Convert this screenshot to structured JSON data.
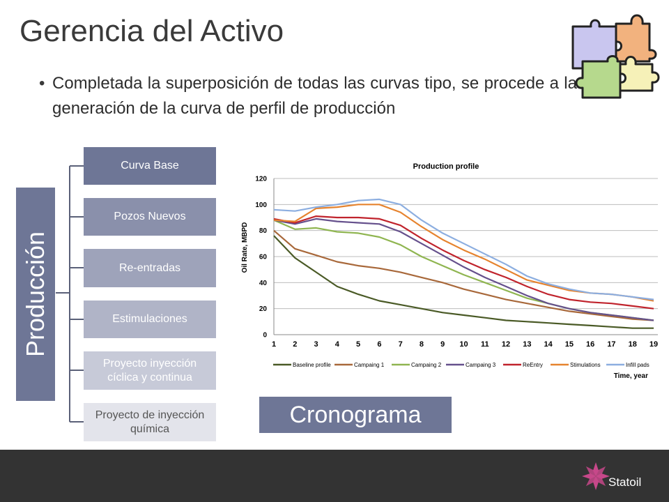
{
  "slide": {
    "title": "Gerencia del Activo",
    "bullet": "Completada la superposición de todas las curvas tipo, se procede a la generación de la curva de perfil de producción"
  },
  "hierarchy": {
    "root_label": "Producción",
    "items": [
      {
        "label": "Curva Base",
        "color": "#6e7696"
      },
      {
        "label": "Pozos Nuevos",
        "color": "#8a90ab"
      },
      {
        "label": "Re-entradas",
        "color": "#9ea3ba"
      },
      {
        "label": "Estimulaciones",
        "color": "#b0b4c7"
      },
      {
        "label": "Proyecto inyección cíclica y continua",
        "color": "#c7cad8"
      },
      {
        "label": "Proyecto de inyección química",
        "color": "#e3e4eb",
        "text_color": "#555555"
      }
    ]
  },
  "chart_data": {
    "type": "line",
    "title": "Production  profile",
    "xlabel": "Time, year",
    "ylabel": "Oil Rate, MBPD",
    "x": [
      1,
      2,
      3,
      4,
      5,
      6,
      7,
      8,
      9,
      10,
      11,
      12,
      13,
      14,
      15,
      16,
      17,
      18,
      19
    ],
    "ylim": [
      0,
      120
    ],
    "yticks": [
      0,
      20,
      40,
      60,
      80,
      100,
      120
    ],
    "grid": true,
    "legend_position": "bottom",
    "series": [
      {
        "name": "Baseline profile",
        "color": "#4a5a26",
        "values": [
          76,
          59,
          48,
          37,
          31,
          26,
          23,
          20,
          17,
          15,
          13,
          11,
          10,
          9,
          8,
          7,
          6,
          5,
          5
        ]
      },
      {
        "name": "Campaing 1",
        "color": "#a8683a",
        "values": [
          80,
          66,
          61,
          56,
          53,
          51,
          48,
          44,
          40,
          35,
          31,
          27,
          24,
          21,
          18,
          16,
          14,
          12,
          11
        ]
      },
      {
        "name": "Campaing 2",
        "color": "#8fb550",
        "values": [
          88,
          81,
          82,
          79,
          78,
          75,
          69,
          60,
          53,
          46,
          40,
          34,
          28,
          24,
          20,
          17,
          15,
          13,
          11
        ]
      },
      {
        "name": "Campaing 3",
        "color": "#65508c",
        "values": [
          88,
          85,
          89,
          87,
          86,
          85,
          79,
          70,
          61,
          52,
          44,
          37,
          30,
          24,
          20,
          17,
          15,
          13,
          11
        ]
      },
      {
        "name": "ReEntry",
        "color": "#c0232c",
        "values": [
          89,
          86,
          91,
          90,
          90,
          89,
          84,
          74,
          65,
          57,
          50,
          44,
          37,
          31,
          27,
          25,
          24,
          22,
          20
        ]
      },
      {
        "name": "Stimulations",
        "color": "#e6832e",
        "values": [
          88,
          87,
          97,
          98,
          100,
          100,
          94,
          83,
          73,
          65,
          58,
          50,
          42,
          38,
          34,
          32,
          31,
          29,
          26
        ]
      },
      {
        "name": "Infill pads",
        "color": "#8caee0",
        "values": [
          96,
          95,
          98,
          100,
          103,
          104,
          100,
          88,
          78,
          70,
          62,
          54,
          45,
          39,
          35,
          32,
          31,
          29,
          27
        ]
      }
    ]
  },
  "crono": {
    "label": "Cronograma"
  },
  "footer": {
    "logo_text": "Statoil"
  },
  "colors": {
    "accent": "#6e7696",
    "footer": "#333333",
    "logo": "#c7488a"
  }
}
